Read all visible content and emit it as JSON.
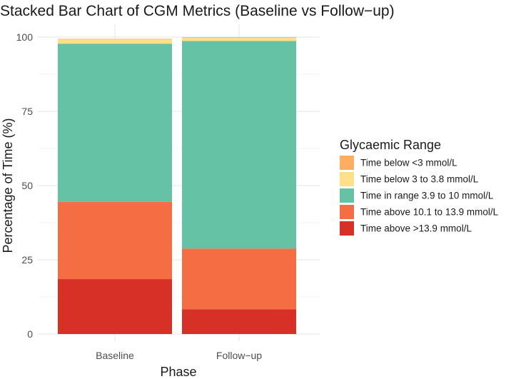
{
  "chart_data": {
    "type": "bar",
    "stacked": true,
    "title": "Stacked Bar Chart of CGM Metrics (Baseline vs Follow−up)",
    "xlabel": "Phase",
    "ylabel": "Percentage of Time (%)",
    "categories": [
      "Baseline",
      "Follow−up"
    ],
    "ylim": [
      0,
      100
    ],
    "yticks": [
      "0",
      "25",
      "50",
      "75",
      "100"
    ],
    "grid": true,
    "legend": {
      "title": "Glycaemic Range",
      "position": "right"
    },
    "series": [
      {
        "name": "Time above >13.9 mmol/L",
        "color": "#d73027",
        "values": [
          18.5,
          8.3
        ]
      },
      {
        "name": "Time above 10.1 to 13.9 mmol/L",
        "color": "#f46d43",
        "values": [
          26.0,
          20.5
        ]
      },
      {
        "name": "Time in range 3.9 to 10 mmol/L",
        "color": "#66c2a5",
        "values": [
          53.3,
          69.9
        ]
      },
      {
        "name": "Time below 3 to 3.8 mmol/L",
        "color": "#fee08b",
        "values": [
          1.4,
          1.1
        ]
      },
      {
        "name": "Time below <3 mmol/L",
        "color": "#fdae61",
        "values": [
          0.2,
          0.2
        ]
      }
    ],
    "legend_order": [
      "Time below <3 mmol/L",
      "Time below 3 to 3.8 mmol/L",
      "Time in range 3.9 to 10 mmol/L",
      "Time above 10.1 to 13.9 mmol/L",
      "Time above >13.9 mmol/L"
    ]
  }
}
